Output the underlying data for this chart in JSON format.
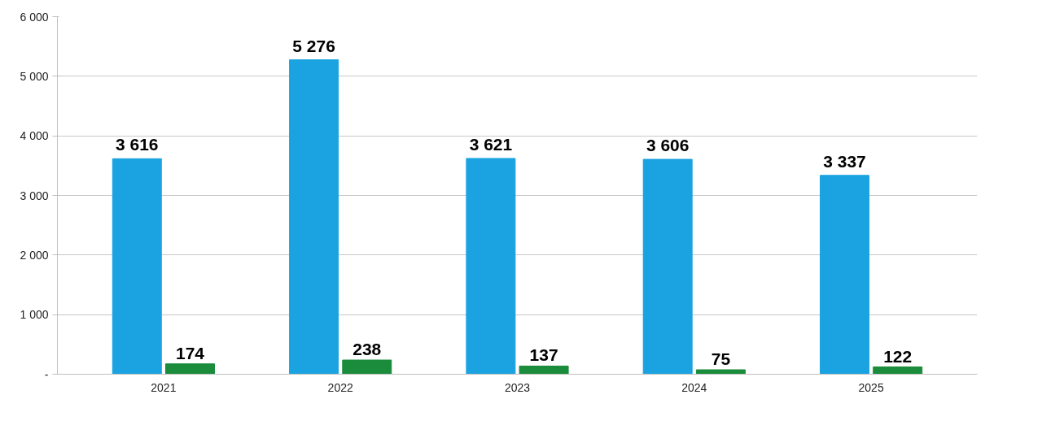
{
  "chart_data": {
    "type": "bar",
    "categories": [
      "2021",
      "2022",
      "2023",
      "2024",
      "2025"
    ],
    "series": [
      {
        "color": "#1aa3e0",
        "values": [
          3616,
          5276,
          3621,
          3606,
          3337
        ],
        "value_labels": [
          "3 616",
          "5 276",
          "3 621",
          "3 606",
          "3 337"
        ]
      },
      {
        "color": "#1a8c3c",
        "values": [
          174,
          238,
          137,
          75,
          122
        ],
        "value_labels": [
          "174",
          "238",
          "137",
          "75",
          "122"
        ]
      }
    ],
    "ylim": [
      0,
      6000
    ],
    "yticks": [
      {
        "value": 0,
        "label": "-"
      },
      {
        "value": 1000,
        "label": "1 000"
      },
      {
        "value": 2000,
        "label": "2 000"
      },
      {
        "value": 3000,
        "label": "3 000"
      },
      {
        "value": 4000,
        "label": "4 000"
      },
      {
        "value": 5000,
        "label": "5 000"
      },
      {
        "value": 6000,
        "label": "6 000"
      }
    ],
    "grid": "y"
  }
}
